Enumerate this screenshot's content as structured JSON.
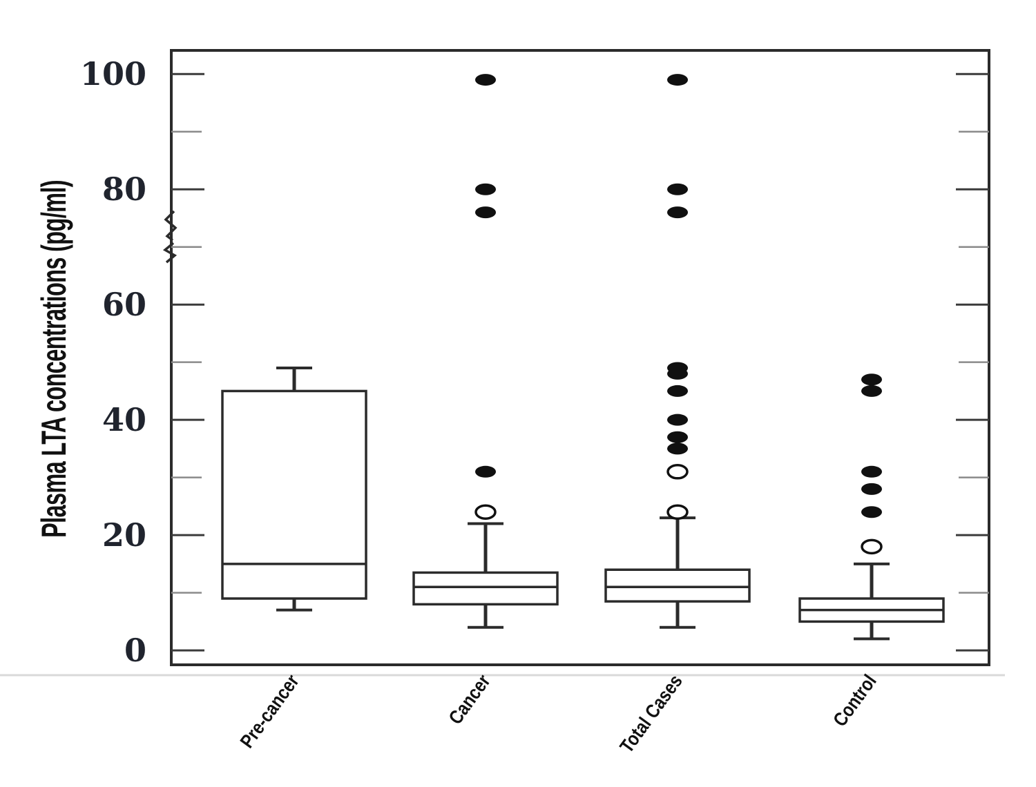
{
  "figure": {
    "background": "#ffffff",
    "ink_color": "#2b2b2b",
    "tick_label_color": "#20242e",
    "outlier_fill_color": "#101010",
    "shadow_line_color": "#d9d9d9"
  },
  "chart_data": {
    "type": "boxplot",
    "title": "",
    "xlabel": "",
    "ylabel": "Plasma LTA concentrations (pg/ml)",
    "ylim": [
      -2.5,
      104.1
    ],
    "yticks_major": [
      0,
      20,
      40,
      60,
      80,
      100
    ],
    "yticks_minor": [
      10,
      30,
      50,
      70,
      90
    ],
    "grid": false,
    "legend": "none",
    "axis_break": {
      "present": true,
      "axis": "left",
      "value_range": [
        67,
        76
      ]
    },
    "categories": [
      "Pre-cancer",
      "Cancer",
      "Total Cases",
      "Control"
    ],
    "series": [
      {
        "name": "Pre-cancer",
        "whisker_low": 7,
        "q1": 9,
        "median": 15,
        "q3": 45,
        "whisker_high": 49,
        "outliers_filled": [],
        "outliers_open": []
      },
      {
        "name": "Cancer",
        "whisker_low": 4,
        "q1": 8,
        "median": 11,
        "q3": 13.5,
        "whisker_high": 22,
        "outliers_filled": [
          99,
          80,
          76,
          31
        ],
        "outliers_open": [
          24
        ]
      },
      {
        "name": "Total Cases",
        "whisker_low": 4,
        "q1": 8.5,
        "median": 11,
        "q3": 14,
        "whisker_high": 23,
        "outliers_filled": [
          99,
          80,
          76,
          49,
          48,
          45,
          40,
          37,
          35
        ],
        "outliers_open": [
          31,
          24
        ]
      },
      {
        "name": "Control",
        "whisker_low": 2,
        "q1": 5,
        "median": 7,
        "q3": 9,
        "whisker_high": 15,
        "outliers_filled": [
          47,
          45,
          31,
          28,
          24
        ],
        "outliers_open": [
          18
        ]
      }
    ]
  }
}
